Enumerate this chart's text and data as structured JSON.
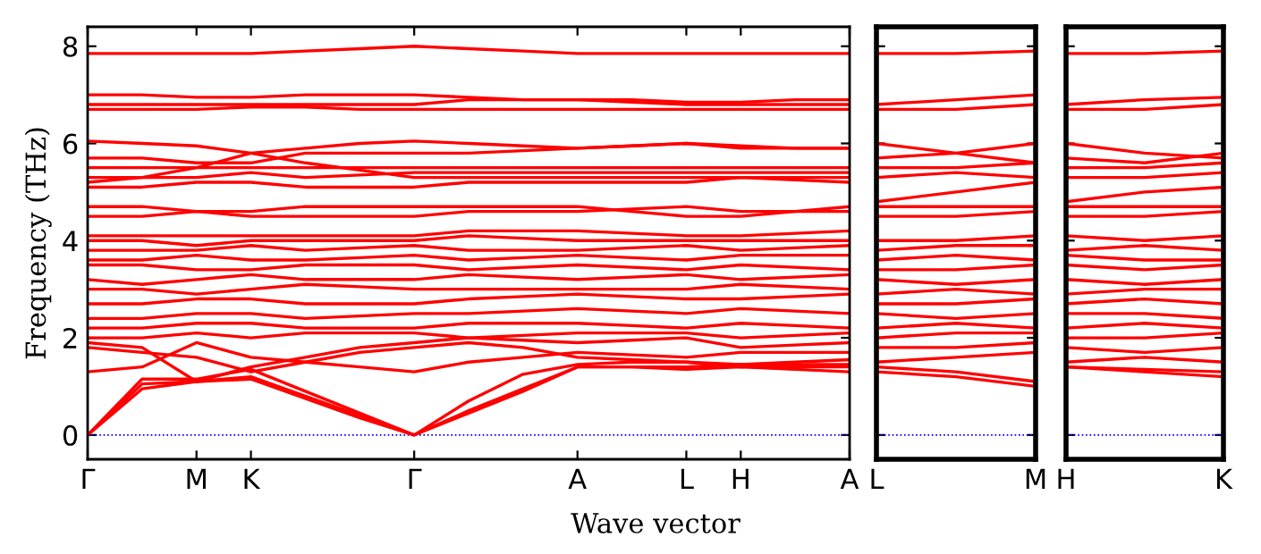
{
  "chart_data": [
    {
      "type": "line",
      "ylabel": "Frequency (THz)",
      "xlabel": "Wave vector",
      "categories": [
        "Γ",
        null,
        "M",
        "K",
        null,
        null,
        "Γ",
        null,
        null,
        "A",
        null,
        "L",
        "H",
        null,
        "A"
      ],
      "ylim": [
        -0.5,
        8.4
      ],
      "yticks": [
        0,
        2,
        4,
        6,
        8
      ],
      "line_style": "solid",
      "ref_lines": [
        {
          "axis": "y",
          "value": 0,
          "color": "#0000ff",
          "line_style": "dotted"
        }
      ],
      "series": [
        {
          "color": "#ff0000",
          "values": [
            0,
            1.05,
            1.1,
            1.2,
            0.8,
            0.4,
            0,
            0.5,
            0.95,
            1.4,
            1.4,
            1.35,
            1.4,
            1.35,
            1.3
          ]
        },
        {
          "color": "#ff0000",
          "values": [
            0,
            0.95,
            1.1,
            1.15,
            0.75,
            0.35,
            0,
            0.45,
            0.9,
            1.4,
            1.4,
            1.4,
            1.45,
            1.45,
            1.45
          ]
        },
        {
          "color": "#ff0000",
          "values": [
            0,
            1.15,
            1.15,
            1.35,
            0.9,
            0.45,
            0,
            0.7,
            1.25,
            1.45,
            1.5,
            1.5,
            1.45,
            1.5,
            1.55
          ]
        },
        {
          "color": "#ff0000",
          "values": [
            1.3,
            1.4,
            1.9,
            1.6,
            1.5,
            1.4,
            1.3,
            1.5,
            1.6,
            1.7,
            1.65,
            1.6,
            1.7,
            1.7,
            1.7
          ]
        },
        {
          "color": "#ff0000",
          "values": [
            1.8,
            1.7,
            1.6,
            1.3,
            1.5,
            1.7,
            1.8,
            1.9,
            1.8,
            1.6,
            1.55,
            1.5,
            1.4,
            1.4,
            1.4
          ]
        },
        {
          "color": "#ff0000",
          "values": [
            1.9,
            1.8,
            1.1,
            1.4,
            1.6,
            1.8,
            1.9,
            2.0,
            1.95,
            1.9,
            1.95,
            2.0,
            1.8,
            1.85,
            1.9
          ]
        },
        {
          "color": "#ff0000",
          "values": [
            2.0,
            2.0,
            2.1,
            2.0,
            2.1,
            2.1,
            2.1,
            2.0,
            2.05,
            2.1,
            2.1,
            2.1,
            2.0,
            2.05,
            2.1
          ]
        },
        {
          "color": "#ff0000",
          "values": [
            2.2,
            2.2,
            2.3,
            2.3,
            2.2,
            2.2,
            2.2,
            2.3,
            2.3,
            2.3,
            2.25,
            2.2,
            2.3,
            2.25,
            2.2
          ]
        },
        {
          "color": "#ff0000",
          "values": [
            2.4,
            2.4,
            2.5,
            2.5,
            2.4,
            2.45,
            2.5,
            2.5,
            2.55,
            2.6,
            2.55,
            2.5,
            2.6,
            2.55,
            2.5
          ]
        },
        {
          "color": "#ff0000",
          "values": [
            2.7,
            2.7,
            2.8,
            2.8,
            2.7,
            2.7,
            2.7,
            2.8,
            2.85,
            2.9,
            2.85,
            2.8,
            2.8,
            2.85,
            2.9
          ]
        },
        {
          "color": "#ff0000",
          "values": [
            3.0,
            3.0,
            2.9,
            3.0,
            3.1,
            3.05,
            3.0,
            3.0,
            3.0,
            3.0,
            3.0,
            3.0,
            3.1,
            3.05,
            3.0
          ]
        },
        {
          "color": "#ff0000",
          "values": [
            3.2,
            3.1,
            3.2,
            3.3,
            3.2,
            3.2,
            3.2,
            3.3,
            3.25,
            3.2,
            3.25,
            3.3,
            3.2,
            3.25,
            3.3
          ]
        },
        {
          "color": "#ff0000",
          "values": [
            3.5,
            3.5,
            3.4,
            3.4,
            3.5,
            3.5,
            3.5,
            3.4,
            3.45,
            3.5,
            3.45,
            3.4,
            3.5,
            3.45,
            3.4
          ]
        },
        {
          "color": "#ff0000",
          "values": [
            3.6,
            3.6,
            3.7,
            3.6,
            3.6,
            3.65,
            3.7,
            3.6,
            3.65,
            3.7,
            3.65,
            3.6,
            3.7,
            3.7,
            3.7
          ]
        },
        {
          "color": "#ff0000",
          "values": [
            3.8,
            3.8,
            3.8,
            3.9,
            3.8,
            3.85,
            3.9,
            3.8,
            3.8,
            3.8,
            3.85,
            3.9,
            3.8,
            3.85,
            3.9
          ]
        },
        {
          "color": "#ff0000",
          "values": [
            4.0,
            4.0,
            3.9,
            4.0,
            4.0,
            4.0,
            4.0,
            4.1,
            4.05,
            4.0,
            4.0,
            4.0,
            4.0,
            4.0,
            4.0
          ]
        },
        {
          "color": "#ff0000",
          "values": [
            4.1,
            4.1,
            4.1,
            4.1,
            4.1,
            4.1,
            4.1,
            4.2,
            4.2,
            4.2,
            4.15,
            4.1,
            4.1,
            4.15,
            4.2
          ]
        },
        {
          "color": "#ff0000",
          "values": [
            4.5,
            4.5,
            4.6,
            4.5,
            4.5,
            4.5,
            4.5,
            4.6,
            4.6,
            4.6,
            4.65,
            4.7,
            4.6,
            4.6,
            4.6
          ]
        },
        {
          "color": "#ff0000",
          "values": [
            4.7,
            4.7,
            4.6,
            4.6,
            4.7,
            4.7,
            4.7,
            4.7,
            4.7,
            4.7,
            4.6,
            4.5,
            4.5,
            4.6,
            4.7
          ]
        },
        {
          "color": "#ff0000",
          "values": [
            5.1,
            5.1,
            5.2,
            5.2,
            5.1,
            5.1,
            5.1,
            5.2,
            5.2,
            5.2,
            5.2,
            5.2,
            5.3,
            5.25,
            5.2
          ]
        },
        {
          "color": "#ff0000",
          "values": [
            5.2,
            5.3,
            5.5,
            5.8,
            5.6,
            5.45,
            5.3,
            5.3,
            5.3,
            5.3,
            5.3,
            5.3,
            5.3,
            5.3,
            5.3
          ]
        },
        {
          "color": "#ff0000",
          "values": [
            5.3,
            5.3,
            5.3,
            5.4,
            5.3,
            5.35,
            5.4,
            5.4,
            5.4,
            5.4,
            5.4,
            5.4,
            5.4,
            5.4,
            5.4
          ]
        },
        {
          "color": "#ff0000",
          "values": [
            5.5,
            5.5,
            5.5,
            5.5,
            5.5,
            5.5,
            5.5,
            5.5,
            5.5,
            5.5,
            5.5,
            5.5,
            5.5,
            5.5,
            5.5
          ]
        },
        {
          "color": "#ff0000",
          "values": [
            5.7,
            5.7,
            5.6,
            5.6,
            5.8,
            5.8,
            5.8,
            5.8,
            5.85,
            5.9,
            5.95,
            6.0,
            5.9,
            5.9,
            5.9
          ]
        },
        {
          "color": "#ff0000",
          "values": [
            6.05,
            6.0,
            5.95,
            5.8,
            5.9,
            6.0,
            6.05,
            6.0,
            5.95,
            5.9,
            5.95,
            6.0,
            5.95,
            5.9,
            5.9
          ]
        },
        {
          "color": "#ff0000",
          "values": [
            6.7,
            6.7,
            6.7,
            6.75,
            6.75,
            6.7,
            6.7,
            6.7,
            6.7,
            6.7,
            6.7,
            6.7,
            6.7,
            6.7,
            6.7
          ]
        },
        {
          "color": "#ff0000",
          "values": [
            6.8,
            6.8,
            6.8,
            6.8,
            6.8,
            6.8,
            6.8,
            6.9,
            6.9,
            6.9,
            6.85,
            6.8,
            6.8,
            6.8,
            6.8
          ]
        },
        {
          "color": "#ff0000",
          "values": [
            7.0,
            7.0,
            6.95,
            6.95,
            7.0,
            7.0,
            7.0,
            6.95,
            6.9,
            6.9,
            6.9,
            6.85,
            6.85,
            6.9,
            6.9
          ]
        },
        {
          "color": "#ff0000",
          "values": [
            7.85,
            7.85,
            7.85,
            7.85,
            7.9,
            7.95,
            8.0,
            7.95,
            7.9,
            7.85,
            7.85,
            7.85,
            7.85,
            7.85,
            7.85
          ]
        }
      ]
    },
    {
      "type": "line",
      "categories": [
        "L",
        null,
        "M"
      ],
      "ylim": [
        -0.5,
        8.4
      ],
      "yticks": [
        {
          "value": 0,
          "label": null
        },
        {
          "value": 2,
          "label": null
        },
        {
          "value": 4,
          "label": null
        },
        {
          "value": 6,
          "label": null
        },
        {
          "value": 8,
          "label": null
        }
      ],
      "tick_labels": "x",
      "line_style": "solid",
      "ref_lines": [
        {
          "axis": "y",
          "value": 0,
          "color": "#0000ff",
          "line_style": "dotted"
        }
      ],
      "series": [
        {
          "color": "#ff0000",
          "values": [
            1.3,
            1.2,
            1.0
          ]
        },
        {
          "color": "#ff0000",
          "values": [
            1.4,
            1.3,
            1.1
          ]
        },
        {
          "color": "#ff0000",
          "values": [
            1.5,
            1.6,
            1.7
          ]
        },
        {
          "color": "#ff0000",
          "values": [
            1.8,
            1.8,
            1.9
          ]
        },
        {
          "color": "#ff0000",
          "values": [
            2.0,
            2.1,
            2.1
          ]
        },
        {
          "color": "#ff0000",
          "values": [
            2.2,
            2.3,
            2.2
          ]
        },
        {
          "color": "#ff0000",
          "values": [
            2.5,
            2.4,
            2.5
          ]
        },
        {
          "color": "#ff0000",
          "values": [
            2.7,
            2.7,
            2.8
          ]
        },
        {
          "color": "#ff0000",
          "values": [
            2.9,
            3.0,
            2.9
          ]
        },
        {
          "color": "#ff0000",
          "values": [
            3.2,
            3.1,
            3.2
          ]
        },
        {
          "color": "#ff0000",
          "values": [
            3.4,
            3.4,
            3.5
          ]
        },
        {
          "color": "#ff0000",
          "values": [
            3.6,
            3.7,
            3.6
          ]
        },
        {
          "color": "#ff0000",
          "values": [
            3.8,
            3.9,
            3.9
          ]
        },
        {
          "color": "#ff0000",
          "values": [
            4.0,
            4.0,
            4.1
          ]
        },
        {
          "color": "#ff0000",
          "values": [
            4.5,
            4.5,
            4.6
          ]
        },
        {
          "color": "#ff0000",
          "values": [
            4.7,
            4.7,
            4.7
          ]
        },
        {
          "color": "#ff0000",
          "values": [
            4.8,
            5.0,
            5.2
          ]
        },
        {
          "color": "#ff0000",
          "values": [
            5.3,
            5.4,
            5.3
          ]
        },
        {
          "color": "#ff0000",
          "values": [
            5.5,
            5.5,
            5.6
          ]
        },
        {
          "color": "#ff0000",
          "values": [
            6.0,
            5.8,
            5.6
          ]
        },
        {
          "color": "#ff0000",
          "values": [
            5.7,
            5.8,
            6.0
          ]
        },
        {
          "color": "#ff0000",
          "values": [
            6.7,
            6.7,
            6.8
          ]
        },
        {
          "color": "#ff0000",
          "values": [
            6.8,
            6.9,
            7.0
          ]
        },
        {
          "color": "#ff0000",
          "values": [
            7.85,
            7.85,
            7.9
          ]
        }
      ]
    },
    {
      "type": "line",
      "categories": [
        "H",
        null,
        "K"
      ],
      "ylim": [
        -0.5,
        8.4
      ],
      "yticks": [
        {
          "value": 0,
          "label": null
        },
        {
          "value": 2,
          "label": null
        },
        {
          "value": 4,
          "label": null
        },
        {
          "value": 6,
          "label": null
        },
        {
          "value": 8,
          "label": null
        }
      ],
      "tick_labels": "x",
      "line_style": "solid",
      "ref_lines": [
        {
          "axis": "y",
          "value": 0,
          "color": "#0000ff",
          "line_style": "dotted"
        }
      ],
      "series": [
        {
          "color": "#ff0000",
          "values": [
            1.4,
            1.3,
            1.2
          ]
        },
        {
          "color": "#ff0000",
          "values": [
            1.4,
            1.35,
            1.3
          ]
        },
        {
          "color": "#ff0000",
          "values": [
            1.5,
            1.6,
            1.5
          ]
        },
        {
          "color": "#ff0000",
          "values": [
            1.8,
            1.7,
            1.8
          ]
        },
        {
          "color": "#ff0000",
          "values": [
            2.0,
            2.0,
            2.1
          ]
        },
        {
          "color": "#ff0000",
          "values": [
            2.2,
            2.3,
            2.2
          ]
        },
        {
          "color": "#ff0000",
          "values": [
            2.5,
            2.5,
            2.4
          ]
        },
        {
          "color": "#ff0000",
          "values": [
            2.7,
            2.8,
            2.7
          ]
        },
        {
          "color": "#ff0000",
          "values": [
            2.9,
            3.0,
            3.0
          ]
        },
        {
          "color": "#ff0000",
          "values": [
            3.2,
            3.1,
            3.2
          ]
        },
        {
          "color": "#ff0000",
          "values": [
            3.5,
            3.4,
            3.5
          ]
        },
        {
          "color": "#ff0000",
          "values": [
            3.7,
            3.6,
            3.6
          ]
        },
        {
          "color": "#ff0000",
          "values": [
            3.8,
            3.9,
            3.8
          ]
        },
        {
          "color": "#ff0000",
          "values": [
            4.1,
            4.0,
            4.1
          ]
        },
        {
          "color": "#ff0000",
          "values": [
            4.5,
            4.5,
            4.6
          ]
        },
        {
          "color": "#ff0000",
          "values": [
            4.7,
            4.7,
            4.7
          ]
        },
        {
          "color": "#ff0000",
          "values": [
            4.8,
            5.0,
            5.1
          ]
        },
        {
          "color": "#ff0000",
          "values": [
            5.3,
            5.3,
            5.4
          ]
        },
        {
          "color": "#ff0000",
          "values": [
            5.5,
            5.5,
            5.6
          ]
        },
        {
          "color": "#ff0000",
          "values": [
            6.0,
            5.8,
            5.7
          ]
        },
        {
          "color": "#ff0000",
          "values": [
            5.7,
            5.6,
            5.8
          ]
        },
        {
          "color": "#ff0000",
          "values": [
            6.7,
            6.7,
            6.8
          ]
        },
        {
          "color": "#ff0000",
          "values": [
            6.8,
            6.9,
            6.95
          ]
        },
        {
          "color": "#ff0000",
          "values": [
            7.85,
            7.85,
            7.9
          ]
        }
      ]
    }
  ]
}
